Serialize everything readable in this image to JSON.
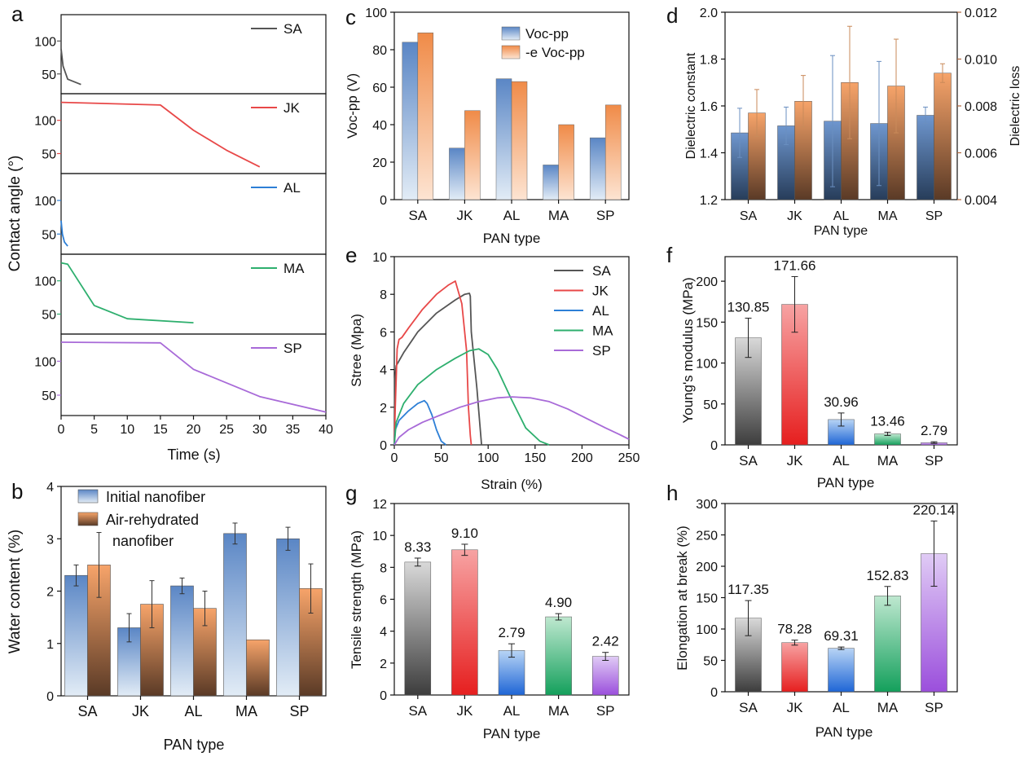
{
  "colors": {
    "SA": "#555555",
    "JK": "#e84848",
    "AL": "#2d7fd6",
    "MA": "#2eaf6e",
    "SP": "#a86ad8",
    "blue_bar": "#5b86c2",
    "orange_bar": "#ef9a5f",
    "left_axis_blue": "#3d6fae",
    "right_axis_brown": "#b0653a"
  },
  "panels": {
    "a": {
      "letter": "a"
    },
    "b": {
      "letter": "b"
    },
    "c": {
      "letter": "c"
    },
    "d": {
      "letter": "d"
    },
    "e": {
      "letter": "e"
    },
    "f": {
      "letter": "f"
    },
    "g": {
      "letter": "g"
    },
    "h": {
      "letter": "h"
    }
  },
  "chart_data": [
    {
      "id": "a",
      "type": "line",
      "stacked_panels": true,
      "xlabel": "Time (s)",
      "ylabel": "Contact angle (°)",
      "xlim": [
        0,
        40
      ],
      "xticks": [
        0,
        5,
        10,
        15,
        20,
        25,
        30,
        35,
        40
      ],
      "series": [
        {
          "name": "SA",
          "ylim": [
            20,
            140
          ],
          "yticks": [
            50,
            100
          ],
          "x": [
            0,
            0.3,
            1,
            3
          ],
          "y": [
            88,
            62,
            42,
            34
          ]
        },
        {
          "name": "JK",
          "ylim": [
            20,
            140
          ],
          "yticks": [
            50,
            100
          ],
          "x": [
            0,
            15,
            20,
            25,
            30
          ],
          "y": [
            127,
            123,
            85,
            55,
            30
          ]
        },
        {
          "name": "AL",
          "ylim": [
            20,
            140
          ],
          "yticks": [
            50,
            100
          ],
          "x": [
            0,
            0.2,
            0.5,
            1
          ],
          "y": [
            70,
            50,
            38,
            32
          ]
        },
        {
          "name": "MA",
          "ylim": [
            20,
            140
          ],
          "yticks": [
            50,
            100
          ],
          "x": [
            0,
            1,
            5,
            10,
            20
          ],
          "y": [
            127,
            125,
            63,
            43,
            37
          ]
        },
        {
          "name": "SP",
          "ylim": [
            20,
            140
          ],
          "yticks": [
            50,
            100
          ],
          "x": [
            0,
            15,
            20,
            30,
            40
          ],
          "y": [
            128,
            127,
            88,
            48,
            25
          ]
        }
      ]
    },
    {
      "id": "b",
      "type": "bar",
      "categories": [
        "SA",
        "JK",
        "AL",
        "MA",
        "SP"
      ],
      "xlabel": "PAN type",
      "ylabel": "Water content (%)",
      "ylim": [
        0,
        4
      ],
      "yticks": [
        0,
        1,
        2,
        3,
        4
      ],
      "legend": [
        "Initial nanofiber",
        "Air-rehydrated",
        "nanofiber"
      ],
      "series": [
        {
          "name": "Initial nanofiber",
          "values": [
            2.3,
            1.3,
            2.1,
            3.1,
            3.0
          ],
          "errors": [
            0.2,
            0.27,
            0.15,
            0.2,
            0.22
          ]
        },
        {
          "name": "Air-rehydrated nanofiber",
          "values": [
            2.5,
            1.75,
            1.67,
            1.07,
            2.05
          ],
          "errors": [
            0.62,
            0.45,
            0.33,
            0.0,
            0.47
          ]
        }
      ]
    },
    {
      "id": "c",
      "type": "bar",
      "categories": [
        "SA",
        "JK",
        "AL",
        "MA",
        "SP"
      ],
      "xlabel": "PAN type",
      "ylabel": "Voc-pp (V)",
      "ylim": [
        0,
        100
      ],
      "yticks": [
        0,
        20,
        40,
        60,
        80,
        100
      ],
      "legend": [
        "Voc-pp",
        "-e Voc-pp"
      ],
      "series": [
        {
          "name": "Voc-pp",
          "values": [
            84,
            27.5,
            64.5,
            18.5,
            33
          ]
        },
        {
          "name": "-e Voc-pp",
          "values": [
            89,
            47.5,
            63,
            40,
            50.5
          ]
        }
      ]
    },
    {
      "id": "d",
      "type": "bar",
      "categories": [
        "SA",
        "JK",
        "AL",
        "MA",
        "SP"
      ],
      "xlabel": "PAN type",
      "ylabel": "Dielectric constant",
      "ylabel_right": "Dielectric loss",
      "ylim": [
        1.2,
        2.0
      ],
      "yticks": [
        1.2,
        1.4,
        1.6,
        1.8,
        2.0
      ],
      "ylim_right": [
        0.004,
        0.012
      ],
      "yticks_right": [
        0.004,
        0.006,
        0.008,
        0.01,
        0.012
      ],
      "series": [
        {
          "name": "Dielectric constant",
          "axis": "left",
          "values": [
            1.485,
            1.515,
            1.535,
            1.525,
            1.56
          ],
          "errors": [
            0.105,
            0.08,
            0.28,
            0.265,
            0.035
          ]
        },
        {
          "name": "Dielectric loss",
          "axis": "right",
          "values": [
            0.0077,
            0.0082,
            0.009,
            0.00885,
            0.0094
          ],
          "errors": [
            0.001,
            0.0011,
            0.0024,
            0.002,
            0.0004
          ]
        }
      ]
    },
    {
      "id": "e",
      "type": "line",
      "xlabel": "Strain (%)",
      "ylabel": "Stree (Mpa)",
      "xlim": [
        0,
        250
      ],
      "xticks": [
        0,
        50,
        100,
        150,
        200,
        250
      ],
      "ylim": [
        0,
        10
      ],
      "yticks": [
        0,
        2,
        4,
        6,
        8,
        10
      ],
      "series": [
        {
          "name": "SA",
          "x": [
            0,
            0.5,
            2,
            10,
            25,
            45,
            65,
            75,
            80,
            81,
            82,
            88,
            91,
            93
          ],
          "y": [
            0,
            3.5,
            4.2,
            4.9,
            6.0,
            7.0,
            7.7,
            8.0,
            8.05,
            7.9,
            6.0,
            3.0,
            1.2,
            0
          ]
        },
        {
          "name": "JK",
          "x": [
            0,
            1,
            3,
            5,
            8,
            15,
            30,
            45,
            58,
            65,
            72,
            77,
            79,
            81,
            82
          ],
          "y": [
            0,
            2.0,
            5.1,
            5.6,
            5.7,
            6.2,
            7.2,
            8.0,
            8.5,
            8.7,
            7.5,
            5.0,
            2.0,
            0.5,
            0
          ]
        },
        {
          "name": "AL",
          "x": [
            0,
            1,
            5,
            15,
            25,
            32,
            35,
            40,
            45,
            50,
            55
          ],
          "y": [
            0,
            0.8,
            1.3,
            1.8,
            2.2,
            2.35,
            2.2,
            1.6,
            0.8,
            0.2,
            0
          ]
        },
        {
          "name": "MA",
          "x": [
            0,
            2,
            10,
            25,
            45,
            65,
            80,
            90,
            100,
            110,
            125,
            140,
            155,
            165
          ],
          "y": [
            0,
            1.2,
            2.2,
            3.2,
            4.0,
            4.6,
            5.0,
            5.1,
            4.8,
            4.0,
            2.4,
            0.9,
            0.2,
            0
          ]
        },
        {
          "name": "SP",
          "x": [
            0,
            5,
            15,
            30,
            50,
            70,
            90,
            110,
            125,
            145,
            165,
            185,
            205,
            225,
            240,
            250
          ],
          "y": [
            0,
            0.4,
            0.8,
            1.2,
            1.6,
            2.0,
            2.3,
            2.5,
            2.55,
            2.5,
            2.3,
            1.9,
            1.4,
            0.9,
            0.55,
            0.3
          ]
        }
      ]
    },
    {
      "id": "f",
      "type": "bar",
      "categories": [
        "SA",
        "JK",
        "AL",
        "MA",
        "SP"
      ],
      "xlabel": "PAN type",
      "ylabel": "Young's modulus (MPa)",
      "ylim": [
        0,
        230
      ],
      "yticks": [
        0,
        50,
        100,
        150,
        200
      ],
      "values": [
        130.85,
        171.66,
        30.96,
        13.46,
        2.79
      ],
      "errors": [
        24,
        34,
        8,
        2,
        1
      ],
      "labels": [
        "130.85",
        "171.66",
        "30.96",
        "13.46",
        "2.79"
      ]
    },
    {
      "id": "g",
      "type": "bar",
      "categories": [
        "SA",
        "JK",
        "AL",
        "MA",
        "SP"
      ],
      "xlabel": "PAN type",
      "ylabel": "Tensile strength (MPa)",
      "ylim": [
        0,
        12
      ],
      "yticks": [
        0,
        2,
        4,
        6,
        8,
        10,
        12
      ],
      "values": [
        8.33,
        9.1,
        2.79,
        4.9,
        2.42
      ],
      "errors": [
        0.25,
        0.35,
        0.42,
        0.2,
        0.25
      ],
      "labels": [
        "8.33",
        "9.10",
        "2.79",
        "4.90",
        "2.42"
      ]
    },
    {
      "id": "h",
      "type": "bar",
      "categories": [
        "SA",
        "JK",
        "AL",
        "MA",
        "SP"
      ],
      "xlabel": "PAN type",
      "ylabel": "Elongation at break (%)",
      "ylim": [
        0,
        300
      ],
      "yticks": [
        0,
        50,
        100,
        150,
        200,
        250,
        300
      ],
      "values": [
        117.35,
        78.28,
        69.31,
        152.83,
        220.14
      ],
      "errors": [
        28,
        4,
        2,
        15,
        52
      ],
      "labels": [
        "117.35",
        "78.28",
        "69.31",
        "152.83",
        "220.14"
      ]
    }
  ]
}
